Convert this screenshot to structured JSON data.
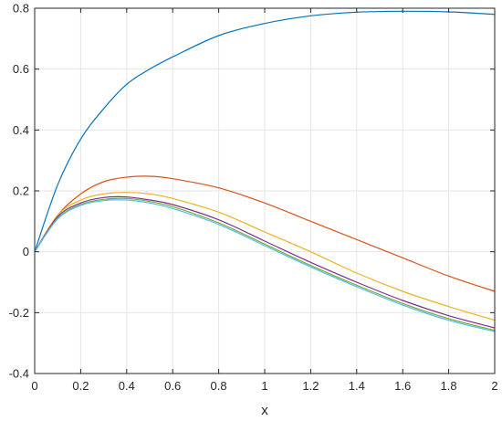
{
  "chart_data": {
    "type": "line",
    "title": "",
    "xlabel": "x",
    "ylabel": "",
    "xlim": [
      0,
      2
    ],
    "ylim": [
      -0.4,
      0.8
    ],
    "grid": true,
    "x_ticks": [
      0,
      0.2,
      0.4,
      0.6,
      0.8,
      1,
      1.2,
      1.4,
      1.6,
      1.8,
      2
    ],
    "x_tick_labels": [
      "0",
      "0.2",
      "0.4",
      "0.6",
      "0.8",
      "1",
      "1.2",
      "1.4",
      "1.6",
      "1.8",
      "2"
    ],
    "y_ticks": [
      -0.4,
      -0.2,
      0,
      0.2,
      0.4,
      0.6,
      0.8
    ],
    "y_tick_labels": [
      "-0.4",
      "-0.2",
      "0",
      "0.2",
      "0.4",
      "0.6",
      "0.8"
    ],
    "x": [
      0,
      0.1,
      0.2,
      0.3,
      0.4,
      0.5,
      0.6,
      0.8,
      1.0,
      1.2,
      1.4,
      1.6,
      1.8,
      2.0
    ],
    "series": [
      {
        "color": "#0072BD",
        "values": [
          0,
          0.22,
          0.37,
          0.47,
          0.55,
          0.6,
          0.64,
          0.71,
          0.75,
          0.775,
          0.787,
          0.79,
          0.788,
          0.78
        ]
      },
      {
        "color": "#D95319",
        "values": [
          0,
          0.12,
          0.19,
          0.23,
          0.245,
          0.248,
          0.24,
          0.21,
          0.16,
          0.1,
          0.04,
          -0.02,
          -0.08,
          -0.13
        ]
      },
      {
        "color": "#EDB120",
        "values": [
          0,
          0.12,
          0.17,
          0.19,
          0.195,
          0.19,
          0.175,
          0.13,
          0.065,
          0.0,
          -0.07,
          -0.13,
          -0.18,
          -0.225
        ]
      },
      {
        "color": "#7E2F8E",
        "values": [
          0,
          0.115,
          0.16,
          0.178,
          0.18,
          0.17,
          0.155,
          0.105,
          0.035,
          -0.035,
          -0.1,
          -0.16,
          -0.21,
          -0.25
        ]
      },
      {
        "color": "#77AC30",
        "values": [
          0,
          0.11,
          0.155,
          0.172,
          0.175,
          0.165,
          0.148,
          0.095,
          0.025,
          -0.045,
          -0.11,
          -0.17,
          -0.22,
          -0.258
        ]
      },
      {
        "color": "#4DBEEE",
        "values": [
          0,
          0.108,
          0.152,
          0.168,
          0.17,
          0.16,
          0.142,
          0.09,
          0.02,
          -0.05,
          -0.115,
          -0.175,
          -0.225,
          -0.262
        ]
      }
    ]
  }
}
